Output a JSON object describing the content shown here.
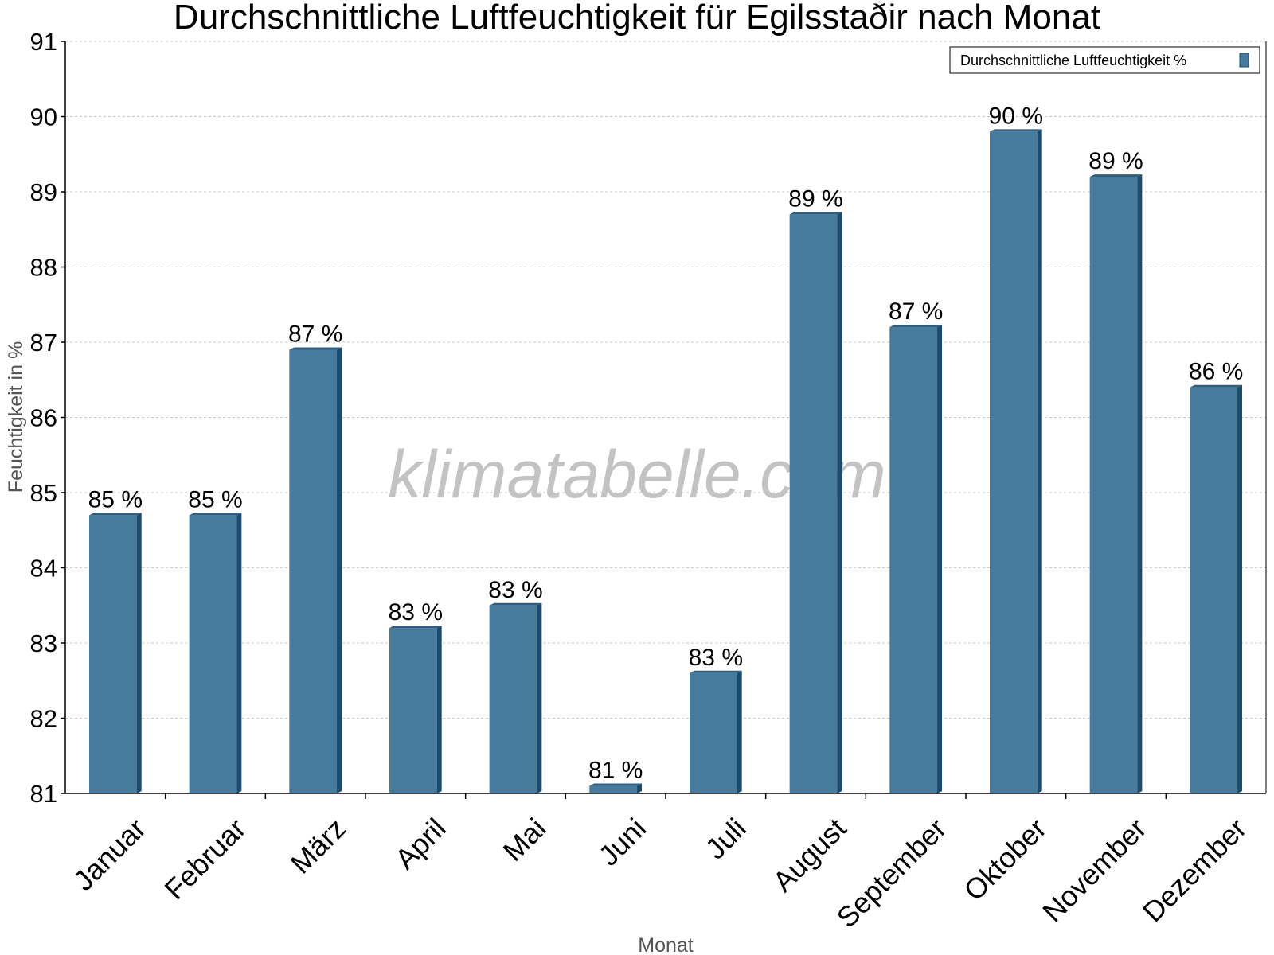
{
  "title": "Durchschnittliche Luftfeuchtigkeit für Egilsstaðir nach Monat",
  "watermark": "klimatabelle.com",
  "colors": {
    "bar_front": "#467b9d",
    "bar_side": "#1d4b6b",
    "bar_top": "#2f5f80",
    "grid": "#c8c8c8",
    "axis": "#000000"
  },
  "chart_data": {
    "type": "bar",
    "title": "Durchschnittliche Luftfeuchtigkeit für Egilsstaðir nach Monat",
    "xlabel": "Monat",
    "ylabel": "Feuchtigkeit in %",
    "ylim": [
      81,
      91
    ],
    "yticks": [
      81,
      82,
      83,
      84,
      85,
      86,
      87,
      88,
      89,
      90,
      91
    ],
    "grid": true,
    "legend_position": "top-right",
    "categories": [
      "Januar",
      "Februar",
      "März",
      "April",
      "Mai",
      "Juni",
      "Juli",
      "August",
      "September",
      "Oktober",
      "November",
      "Dezember"
    ],
    "series": [
      {
        "name": "Durchschnittliche Luftfeuchtigkeit %",
        "values": [
          84.7,
          84.7,
          86.9,
          83.2,
          83.5,
          81.1,
          82.6,
          88.7,
          87.2,
          89.8,
          89.2,
          86.4
        ],
        "labels": [
          "85 %",
          "85 %",
          "87 %",
          "83 %",
          "83 %",
          "81 %",
          "83 %",
          "89 %",
          "87 %",
          "90 %",
          "89 %",
          "86 %"
        ]
      }
    ]
  }
}
